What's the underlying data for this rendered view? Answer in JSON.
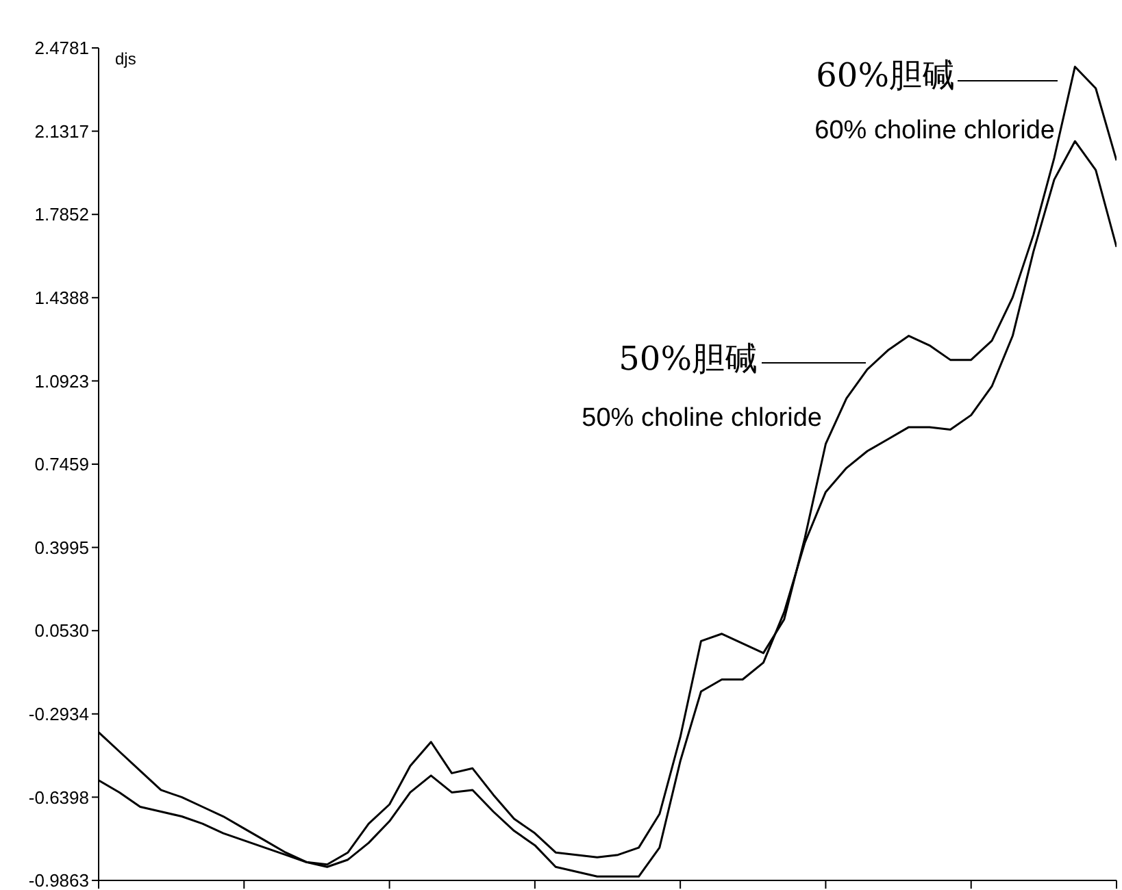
{
  "chart_data": {
    "type": "line",
    "ylabel": "djs",
    "categories": [
      null,
      null,
      null,
      null,
      null,
      null,
      null,
      null,
      null,
      null,
      null,
      null,
      null,
      null,
      null,
      null,
      null,
      null,
      null,
      null,
      null,
      null,
      null,
      null,
      null,
      null,
      null,
      null,
      null,
      null,
      null,
      null,
      null,
      null,
      null,
      null,
      null,
      null,
      null,
      null,
      null,
      null,
      null,
      null,
      null,
      null,
      null,
      null,
      null,
      null
    ],
    "series": [
      {
        "color": "#000000",
        "values": [
          -0.37,
          -0.45,
          -0.53,
          -0.61,
          -0.64,
          -0.68,
          -0.72,
          -0.77,
          -0.82,
          -0.87,
          -0.91,
          -0.92,
          -0.87,
          -0.75,
          -0.67,
          -0.51,
          -0.41,
          -0.54,
          -0.52,
          -0.63,
          -0.73,
          -0.79,
          -0.87,
          -0.88,
          -0.89,
          -0.88,
          -0.85,
          -0.71,
          -0.39,
          0.01,
          0.04,
          0.0,
          -0.04,
          0.1,
          0.44,
          0.83,
          1.02,
          1.14,
          1.22,
          1.28,
          1.24,
          1.18,
          1.18,
          1.26,
          1.44,
          1.7,
          2.02,
          2.4,
          2.31,
          2.01
        ]
      },
      {
        "color": "#000000",
        "values": [
          -0.57,
          -0.62,
          -0.68,
          -0.7,
          -0.72,
          -0.75,
          -0.79,
          -0.82,
          -0.85,
          -0.88,
          -0.91,
          -0.93,
          -0.9,
          -0.83,
          -0.74,
          -0.62,
          -0.55,
          -0.62,
          -0.61,
          -0.7,
          -0.78,
          -0.84,
          -0.93,
          -0.95,
          -0.97,
          -0.97,
          -0.97,
          -0.85,
          -0.49,
          -0.2,
          -0.15,
          -0.15,
          -0.08,
          0.13,
          0.42,
          0.63,
          0.73,
          0.8,
          0.85,
          0.9,
          0.9,
          0.89,
          0.95,
          1.07,
          1.28,
          1.63,
          1.93,
          2.09,
          1.97,
          1.65
        ]
      }
    ],
    "ylim": [
      -0.9863,
      2.4781
    ],
    "yticks": [
      -0.9863,
      -0.6398,
      -0.2934,
      {
        "value": 0.053,
        "label": "0.0530"
      },
      0.3995,
      0.7459,
      1.0923,
      1.4388,
      1.7852,
      2.1317,
      2.4781
    ],
    "grid": false,
    "marker": "none",
    "line_style": "solid",
    "annotations": [
      "60%胆碱",
      "60% choline chloride",
      "50%胆碱",
      "50% choline chloride"
    ]
  }
}
